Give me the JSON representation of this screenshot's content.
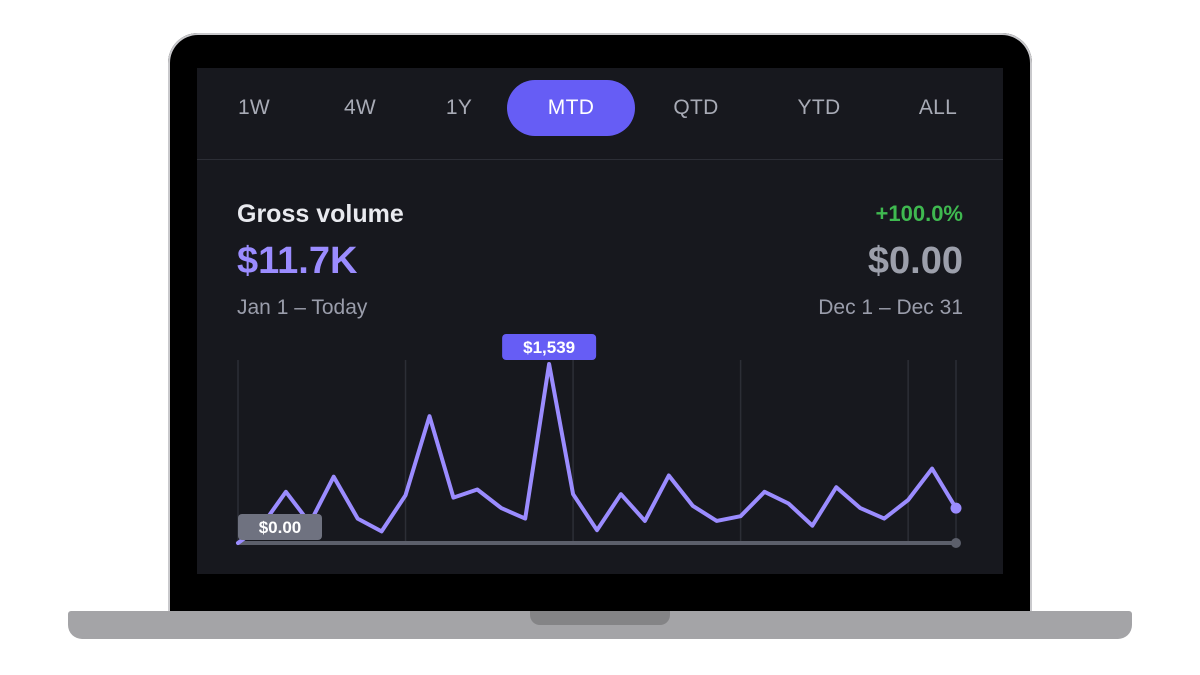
{
  "tabs": [
    {
      "label": "1W",
      "active": false
    },
    {
      "label": "4W",
      "active": false
    },
    {
      "label": "1Y",
      "active": false
    },
    {
      "label": "MTD",
      "active": true
    },
    {
      "label": "QTD",
      "active": false
    },
    {
      "label": "YTD",
      "active": false
    },
    {
      "label": "ALL",
      "active": false
    }
  ],
  "summary": {
    "title": "Gross volume",
    "current_value": "$11.7K",
    "current_range": "Jan 1 – Today",
    "change": "+100.0%",
    "previous_value": "$0.00",
    "previous_range": "Dec 1 – Dec 31"
  },
  "colors": {
    "accent": "#665df5",
    "line": "#9b8cff",
    "positive": "#3fb950",
    "baseline": "#5c5f6b"
  },
  "chart_data": {
    "type": "line",
    "series": [
      {
        "values": [
          0,
          150,
          440,
          170,
          570,
          210,
          100,
          410,
          1090,
          390,
          460,
          300,
          210,
          1539,
          420,
          110,
          420,
          190,
          580,
          320,
          190,
          230,
          440,
          340,
          150,
          480,
          300,
          210,
          370,
          640,
          300
        ]
      },
      {
        "values": [
          0,
          0,
          0
        ]
      }
    ],
    "ylim": [
      0,
      1539
    ],
    "annotations": [
      "$1,539",
      "$0.00"
    ],
    "grid": "vertical"
  }
}
